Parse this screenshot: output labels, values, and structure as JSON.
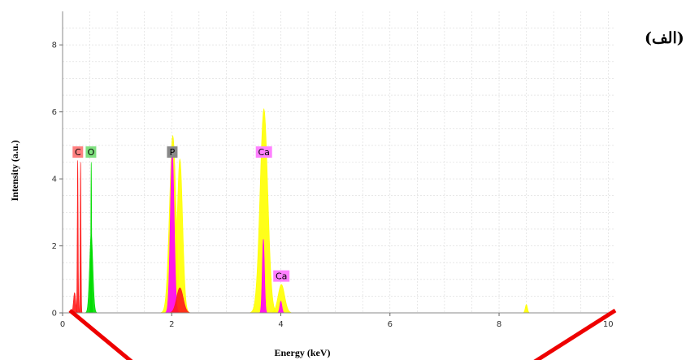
{
  "panel_label": "(الف)",
  "colors": {
    "C": "#ff1a1a",
    "O": "#00dd00",
    "P": "#ff00ff",
    "Ca": "#ffff00",
    "C_tag": "#ff8080",
    "O_tag": "#7fe07f",
    "P_tag": "#888888",
    "Ca_tag": "#ff80ff",
    "overlay_line": "#ee0000"
  },
  "chart_data": {
    "type": "area",
    "xlabel": "Energy (keV)",
    "ylabel": "Intensity (a.u.)",
    "xlim": [
      0,
      10.1
    ],
    "ylim": [
      0,
      9
    ],
    "x_ticks": [
      0,
      2,
      4,
      6,
      8,
      10
    ],
    "y_ticks": [
      0,
      2,
      4,
      6,
      8
    ],
    "grid": true,
    "peak_tags": [
      {
        "label": "C",
        "x": 0.28,
        "y": 4.8,
        "color_key": "C_tag"
      },
      {
        "label": "O",
        "x": 0.52,
        "y": 4.8,
        "color_key": "O_tag"
      },
      {
        "label": "P",
        "x": 2.01,
        "y": 4.8,
        "color_key": "P_tag"
      },
      {
        "label": "Ca",
        "x": 3.69,
        "y": 4.8,
        "color_key": "Ca_tag"
      },
      {
        "label": "Ca",
        "x": 4.01,
        "y": 1.1,
        "color_key": "Ca_tag"
      }
    ],
    "series": [
      {
        "element": "Ca",
        "color_key": "Ca",
        "peaks": [
          [
            3.69,
            6.1,
            0.07
          ],
          [
            4.01,
            0.85,
            0.06
          ],
          [
            2.02,
            5.3,
            0.06
          ],
          [
            2.15,
            4.6,
            0.05
          ],
          [
            8.5,
            0.25,
            0.02
          ]
        ]
      },
      {
        "element": "P",
        "color_key": "P",
        "peaks": [
          [
            2.01,
            4.85,
            0.035
          ],
          [
            3.68,
            2.2,
            0.02
          ],
          [
            4.0,
            0.35,
            0.02
          ]
        ]
      },
      {
        "element": "O",
        "color_key": "O",
        "peaks": [
          [
            0.525,
            2.35,
            0.03
          ],
          [
            0.525,
            4.5,
            0.008
          ]
        ]
      },
      {
        "element": "C",
        "color_key": "C",
        "peaks": [
          [
            0.277,
            4.55,
            0.008
          ],
          [
            0.33,
            4.5,
            0.008
          ],
          [
            0.22,
            0.6,
            0.02
          ],
          [
            2.15,
            0.75,
            0.06
          ]
        ]
      }
    ]
  }
}
